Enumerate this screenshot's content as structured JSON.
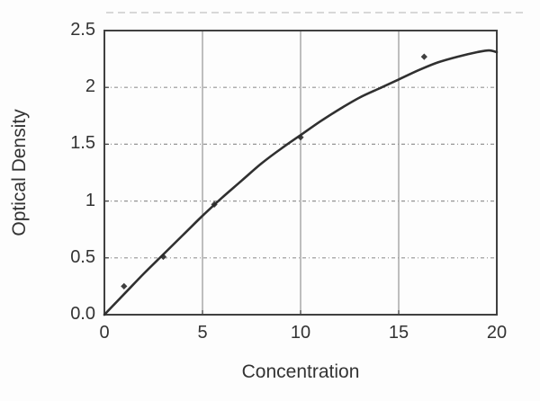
{
  "figure": {
    "title": "",
    "background": "#fdfdfd"
  },
  "chart_data": {
    "type": "scatter",
    "title": "",
    "xlabel": "Concentration",
    "ylabel": "Optical Density",
    "xlim": [
      0,
      20
    ],
    "ylim": [
      0,
      2.5
    ],
    "x_ticks": {
      "values": [
        0,
        5,
        10,
        15,
        20
      ],
      "labels": [
        "0",
        "5",
        "10",
        "15",
        "20"
      ]
    },
    "y_ticks": {
      "values": [
        0,
        0.5,
        1,
        1.5,
        2,
        2.5
      ],
      "labels": [
        "0.0",
        "0.5",
        "1",
        "1.5",
        "2",
        "2.5"
      ]
    },
    "grid": {
      "vertical_at": [
        5,
        10,
        15
      ],
      "vertical_style": "solid",
      "horizontal_at": [
        0.5,
        1,
        1.5,
        2
      ],
      "horizontal_style": "dash-dot"
    },
    "legend_position": "none",
    "points": [
      {
        "x": 1,
        "y": 0.25
      },
      {
        "x": 3,
        "y": 0.51
      },
      {
        "x": 5.6,
        "y": 0.97
      },
      {
        "x": 10,
        "y": 1.56
      },
      {
        "x": 16.3,
        "y": 2.27
      }
    ],
    "fit_curve": [
      [
        0,
        0
      ],
      [
        1,
        0.18
      ],
      [
        2,
        0.36
      ],
      [
        3,
        0.53
      ],
      [
        4,
        0.7
      ],
      [
        5,
        0.87
      ],
      [
        6,
        1.03
      ],
      [
        7,
        1.18
      ],
      [
        8,
        1.33
      ],
      [
        9,
        1.46
      ],
      [
        10,
        1.58
      ],
      [
        11,
        1.7
      ],
      [
        12,
        1.81
      ],
      [
        13,
        1.91
      ],
      [
        14,
        1.99
      ],
      [
        15,
        2.07
      ],
      [
        16,
        2.15
      ],
      [
        17,
        2.22
      ],
      [
        18,
        2.27
      ],
      [
        19,
        2.31
      ],
      [
        19.6,
        2.325
      ],
      [
        20,
        2.31
      ]
    ],
    "colors": {
      "curve": "#303030",
      "marker": "#2a2a2a",
      "frame": "#404040",
      "grid": "#949494",
      "text": "#333333",
      "background": "#fdfdfd",
      "faint_top_line": "#cccccc"
    }
  }
}
